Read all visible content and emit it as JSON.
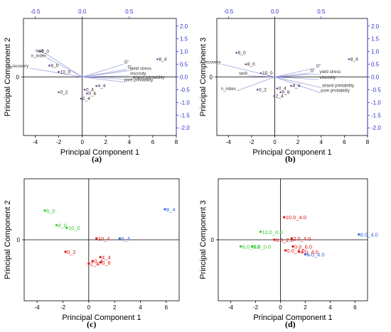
{
  "colors": {
    "bottom_axis": "#000000",
    "top_axis": "#3333cc",
    "loading_vector": "#8f96d8",
    "biplot_point": "#7d3aa8",
    "group_green": "#33cc33",
    "group_red": "#dd1111",
    "group_blue": "#3366dd"
  },
  "chart_data": [
    {
      "panel": "a",
      "caption": "(a)",
      "type": "scatter",
      "subtype": "biplot",
      "xlabel": "Principal Component 1",
      "ylabel": "Principal Component 2",
      "xlim": [
        -5,
        8
      ],
      "ylim": [
        -2.3,
        2.3
      ],
      "xticks": [
        "-4",
        "-2",
        "0",
        "2",
        "4",
        "6",
        "8"
      ],
      "xtick_values": [
        -4,
        -2,
        0,
        2,
        4,
        6,
        8
      ],
      "top_axis": {
        "range": [
          -0.625,
          1.0
        ],
        "ticks": [
          "-0.5",
          "0.0",
          "0.5"
        ],
        "tick_values": [
          -0.5,
          0.0,
          0.5
        ]
      },
      "right_axis": {
        "range": [
          -2.3,
          2.3
        ],
        "ticks": [
          "2.0",
          "1.5",
          "1.0",
          "0.5",
          "0.0",
          "-0.5",
          "-1.0",
          "-1.5",
          "-2.0"
        ],
        "tick_values": [
          2.0,
          1.5,
          1.0,
          0.5,
          0.0,
          -0.5,
          -1.0,
          -1.5,
          -2.0
        ]
      },
      "left_ticks": [
        "0"
      ],
      "left_tick_values": [
        0
      ],
      "points": [
        {
          "label": "6_0",
          "x": -3.6,
          "y": 1.0
        },
        {
          "label": "8_0",
          "x": -2.8,
          "y": 0.45
        },
        {
          "label": "10_0",
          "x": -2.0,
          "y": 0.2
        },
        {
          "label": "0_2",
          "x": -2.0,
          "y": -0.6
        },
        {
          "label": "0_4",
          "x": 0.2,
          "y": -0.5
        },
        {
          "label": "4_4",
          "x": 1.2,
          "y": -0.35
        },
        {
          "label": "0_6",
          "x": 0.4,
          "y": -0.65
        },
        {
          "label": "2_4",
          "x": -0.1,
          "y": -0.85
        },
        {
          "label": "8_4",
          "x": 6.4,
          "y": 0.7
        }
      ],
      "vectors": [
        {
          "label": "tanδ",
          "x": -3.2,
          "y": 0.95
        },
        {
          "label": "n_index",
          "x": -3.0,
          "y": 0.75
        },
        {
          "label": "v_recovery",
          "x": -4.5,
          "y": 0.35
        },
        {
          "label": "G\"",
          "x": 3.5,
          "y": 0.5
        },
        {
          "label": "G'",
          "x": 3.8,
          "y": 0.3
        },
        {
          "label": "yield stress",
          "x": 4.0,
          "y": 0.25
        },
        {
          "label": "viscosity",
          "x": 4.0,
          "y": 0.05
        },
        {
          "label": "strand printability",
          "x": 4.2,
          "y": -0.1
        },
        {
          "label": "pore printability",
          "x": 3.5,
          "y": -0.2
        }
      ]
    },
    {
      "panel": "b",
      "caption": "(b)",
      "type": "scatter",
      "subtype": "biplot",
      "xlabel": "Principal Component 1",
      "ylabel": "Principal Component 3",
      "xlim": [
        -5,
        8
      ],
      "ylim": [
        -2.3,
        2.3
      ],
      "xticks": [
        "-4",
        "-2",
        "0",
        "2",
        "4",
        "6",
        "8"
      ],
      "xtick_values": [
        -4,
        -2,
        0,
        2,
        4,
        6,
        8
      ],
      "top_axis": {
        "range": [
          -0.625,
          1.0
        ],
        "ticks": [
          "-0.5",
          "0.0",
          "0.5"
        ],
        "tick_values": [
          -0.5,
          0.0,
          0.5
        ]
      },
      "right_axis": {
        "range": [
          -2.3,
          2.3
        ],
        "ticks": [
          "2.0",
          "1.5",
          "1.0",
          "0.5",
          "0.0",
          "-0.5",
          "-1.0",
          "-1.5",
          "-2.0"
        ],
        "tick_values": [
          2.0,
          1.5,
          1.0,
          0.5,
          0.0,
          -0.5,
          -1.0,
          -1.5,
          -2.0
        ]
      },
      "left_ticks": [
        "0"
      ],
      "left_tick_values": [
        0
      ],
      "points": [
        {
          "label": "6_0",
          "x": -3.3,
          "y": 0.95
        },
        {
          "label": "8_0",
          "x": -2.5,
          "y": 0.5
        },
        {
          "label": "10_0",
          "x": -1.2,
          "y": 0.15
        },
        {
          "label": "0_2",
          "x": -1.5,
          "y": -0.5
        },
        {
          "label": "0_4",
          "x": 0.2,
          "y": -0.45
        },
        {
          "label": "4_4",
          "x": 1.4,
          "y": -0.35
        },
        {
          "label": "0_6",
          "x": 0.5,
          "y": -0.6
        },
        {
          "label": "2_4",
          "x": -0.05,
          "y": -0.75
        },
        {
          "label": "8_4",
          "x": 6.4,
          "y": 0.7
        }
      ],
      "vectors": [
        {
          "label": "v_recovery",
          "x": -4.6,
          "y": 0.5
        },
        {
          "label": "tanδ",
          "x": -2.3,
          "y": 0.05
        },
        {
          "label": "n_index",
          "x": -3.3,
          "y": -0.55
        },
        {
          "label": "G\"",
          "x": 3.5,
          "y": 0.35
        },
        {
          "label": "G'",
          "x": 3.0,
          "y": 0.15
        },
        {
          "label": "yield stress",
          "x": 3.8,
          "y": 0.12
        },
        {
          "label": "viscosity",
          "x": 3.8,
          "y": -0.1
        },
        {
          "label": "strand printability",
          "x": 4.0,
          "y": -0.42
        },
        {
          "label": "pore printability",
          "x": 3.9,
          "y": -0.62
        }
      ]
    },
    {
      "panel": "c",
      "caption": "(c)",
      "type": "scatter",
      "xlabel": "Principal Component 1",
      "ylabel": "Principal Component 2",
      "xlim": [
        -5,
        7
      ],
      "ylim": [
        -2.3,
        2.3
      ],
      "xticks": [
        "-4",
        "-2",
        "0",
        "2",
        "4",
        "6"
      ],
      "xtick_values": [
        -4,
        -2,
        0,
        2,
        4,
        6
      ],
      "left_ticks": [
        "0"
      ],
      "left_tick_values": [
        0
      ],
      "groups": [
        {
          "color_key": "group_green",
          "points": [
            {
              "label": "6_0",
              "x": -3.4,
              "y": 1.1
            },
            {
              "label": "8_0",
              "x": -2.5,
              "y": 0.55
            },
            {
              "label": "10_0",
              "x": -1.7,
              "y": 0.45
            }
          ]
        },
        {
          "color_key": "group_red",
          "points": [
            {
              "label": "10_4",
              "x": 0.6,
              "y": 0.05
            },
            {
              "label": "0_2",
              "x": -1.8,
              "y": -0.45
            },
            {
              "label": "4_4",
              "x": 0.9,
              "y": -0.65
            },
            {
              "label": "0_4",
              "x": 0.3,
              "y": -0.8
            },
            {
              "label": "0_6",
              "x": 0.9,
              "y": -0.85
            },
            {
              "label": "2_4",
              "x": 0.0,
              "y": -0.9
            }
          ]
        },
        {
          "color_key": "group_blue",
          "points": [
            {
              "label": "6_4",
              "x": 2.4,
              "y": 0.05
            },
            {
              "label": "8_4",
              "x": 5.9,
              "y": 1.15
            }
          ]
        }
      ]
    },
    {
      "panel": "d",
      "caption": "(d)",
      "type": "scatter",
      "xlabel": "Principal Component 1",
      "ylabel": "Principal Component 3",
      "xlim": [
        -5,
        7
      ],
      "ylim": [
        -2.3,
        2.3
      ],
      "xticks": [
        "-4",
        "-2",
        "0",
        "2",
        "4",
        "6"
      ],
      "xtick_values": [
        -4,
        -2,
        0,
        2,
        4,
        6
      ],
      "left_ticks": [
        "0"
      ],
      "left_tick_values": [
        0
      ],
      "groups": [
        {
          "color_key": "group_green",
          "points": [
            {
              "label": "10.0_0.0",
              "x": -1.6,
              "y": 0.3
            },
            {
              "label": "6.0_0.0",
              "x": -3.2,
              "y": -0.25
            },
            {
              "label": "8.0_0.0",
              "x": -2.3,
              "y": -0.25
            }
          ]
        },
        {
          "color_key": "group_red",
          "points": [
            {
              "label": "10.0_4.0",
              "x": 0.3,
              "y": 0.85
            },
            {
              "label": "0.0_2.0",
              "x": -0.5,
              "y": 0.0
            },
            {
              "label": "2.0_4.0",
              "x": 0.9,
              "y": 0.05
            },
            {
              "label": "0.0_6.0",
              "x": 1.0,
              "y": -0.25
            },
            {
              "label": "0.0_4.0",
              "x": 0.4,
              "y": -0.4
            },
            {
              "label": "4.0_4.0",
              "x": 1.5,
              "y": -0.45
            }
          ]
        },
        {
          "color_key": "group_blue",
          "points": [
            {
              "label": "6.0_4.0",
              "x": 2.0,
              "y": -0.55
            },
            {
              "label": "8.0_4.0",
              "x": 6.3,
              "y": 0.2
            }
          ]
        }
      ]
    }
  ]
}
